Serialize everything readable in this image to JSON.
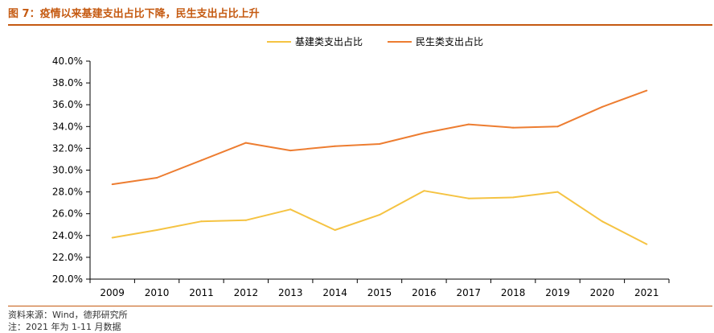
{
  "figure": {
    "title": "图 7：疫情以来基建支出占比下降，民生支出占比上升",
    "source": "资料来源：Wind，德邦研究所",
    "note": "注：2021 年为 1-11 月数据"
  },
  "colors": {
    "accent": "#c55a11",
    "series_infrastructure": "#f5c342",
    "series_livelihood": "#ed7d31"
  },
  "chart_data": {
    "type": "line",
    "title": "",
    "xlabel": "",
    "ylabel": "",
    "x": [
      "2009",
      "2010",
      "2011",
      "2012",
      "2013",
      "2014",
      "2015",
      "2016",
      "2017",
      "2018",
      "2019",
      "2020",
      "2021"
    ],
    "series": [
      {
        "name": "基建类支出占比",
        "color": "#f5c342",
        "values": [
          23.8,
          24.5,
          25.3,
          25.4,
          26.4,
          24.5,
          25.9,
          28.1,
          27.4,
          27.5,
          28.0,
          25.3,
          23.2
        ]
      },
      {
        "name": "民生类支出占比",
        "color": "#ed7d31",
        "values": [
          28.7,
          29.3,
          30.9,
          32.5,
          31.8,
          32.2,
          32.4,
          33.4,
          34.2,
          33.9,
          34.0,
          35.8,
          37.3
        ]
      }
    ],
    "ylim": [
      20.0,
      40.0
    ],
    "y_ticks": [
      "20.0%",
      "22.0%",
      "24.0%",
      "26.0%",
      "28.0%",
      "30.0%",
      "32.0%",
      "34.0%",
      "36.0%",
      "38.0%",
      "40.0%"
    ],
    "y_tick_values": [
      20,
      22,
      24,
      26,
      28,
      30,
      32,
      34,
      36,
      38,
      40
    ],
    "grid": false,
    "legend_position": "top-center"
  }
}
